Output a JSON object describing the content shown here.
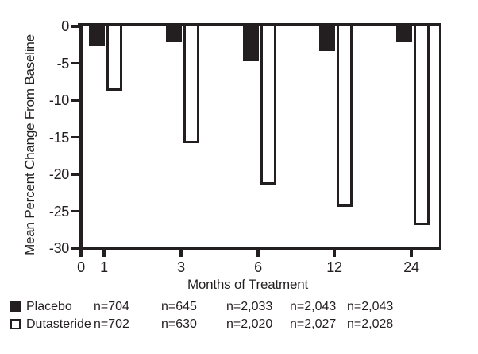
{
  "chart_data": {
    "type": "bar",
    "title": "",
    "xlabel": "Months of Treatment",
    "ylabel": "Mean Percent Change From Baseline",
    "ylim": [
      -30,
      0
    ],
    "yticks": [
      "0",
      "-5",
      "-10",
      "-15",
      "-20",
      "-25",
      "-30"
    ],
    "x_origin_label": "0",
    "categories": [
      "1",
      "3",
      "6",
      "12",
      "24"
    ],
    "series": [
      {
        "name": "Placebo",
        "swatch": "filled",
        "values": [
          -2.7,
          -2.1,
          -4.7,
          -3.3,
          -2.2
        ],
        "n_counts": [
          "n=704",
          "n=645",
          "n=2,033",
          "n=2,043",
          "n=2,043"
        ]
      },
      {
        "name": "Dutasteride",
        "swatch": "open",
        "values": [
          -8.7,
          -15.8,
          -21.4,
          -24.4,
          -26.9
        ],
        "n_counts": [
          "n=702",
          "n=630",
          "n=2,020",
          "n=2,027",
          "n=2,028"
        ]
      }
    ],
    "legend_position": "bottom-left",
    "grid": false
  },
  "colors": {
    "bar_fill": "#231f20",
    "bar_open_fill": "#ffffff",
    "axis": "#231f20",
    "text": "#231f20",
    "background": "#ffffff"
  }
}
